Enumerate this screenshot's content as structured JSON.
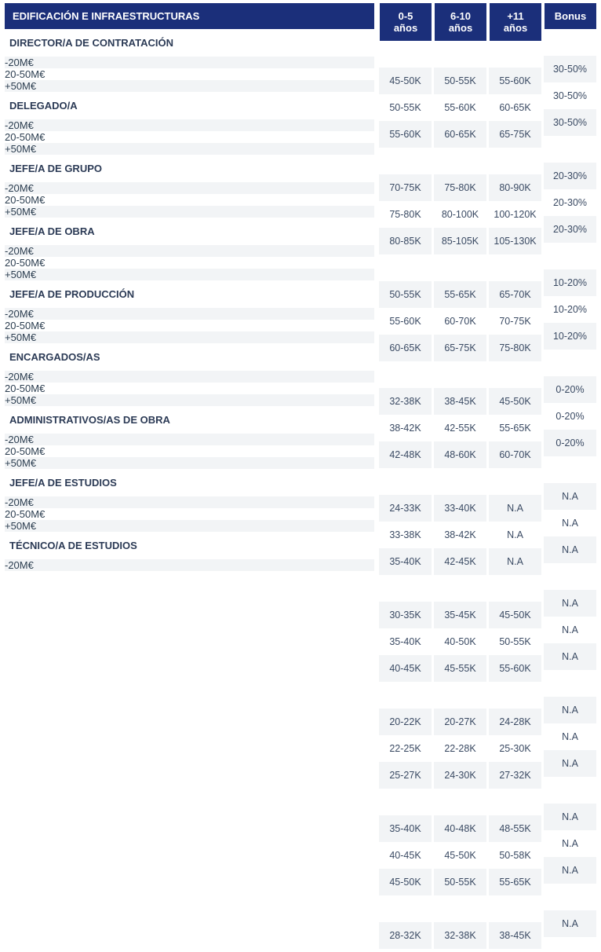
{
  "header": {
    "title": "EDIFICACIÓN E INFRAESTRUCTURAS",
    "cols": [
      "0-5 años",
      "6-10 años",
      "+11 años",
      "Bonus"
    ]
  },
  "colors": {
    "header_bg": "#1b2f7a",
    "header_fg": "#ffffff",
    "alt_row_bg": "#f2f4f6",
    "text": "#2b3a55"
  },
  "sections": [
    {
      "title": "DIRECTOR/A DE CONTRATACIÓN",
      "rows": [
        {
          "label": "-20M€",
          "vals": [
            "45-50K",
            "50-55K",
            "55-60K",
            "30-50%"
          ]
        },
        {
          "label": "20-50M€",
          "vals": [
            "50-55K",
            "55-60K",
            "60-65K",
            "30-50%"
          ]
        },
        {
          "label": "+50M€",
          "vals": [
            "55-60K",
            "60-65K",
            "65-75K",
            "30-50%"
          ]
        }
      ]
    },
    {
      "title": "DELEGADO/A",
      "rows": [
        {
          "label": "-20M€",
          "vals": [
            "70-75K",
            "75-80K",
            "80-90K",
            "20-30%"
          ]
        },
        {
          "label": "20-50M€",
          "vals": [
            "75-80K",
            "80-100K",
            "100-120K",
            "20-30%"
          ]
        },
        {
          "label": "+50M€",
          "vals": [
            "80-85K",
            "85-105K",
            "105-130K",
            "20-30%"
          ]
        }
      ]
    },
    {
      "title": "JEFE/A DE GRUPO",
      "rows": [
        {
          "label": "-20M€",
          "vals": [
            "50-55K",
            "55-65K",
            "65-70K",
            "10-20%"
          ]
        },
        {
          "label": "20-50M€",
          "vals": [
            "55-60K",
            "60-70K",
            "70-75K",
            "10-20%"
          ]
        },
        {
          "label": "+50M€",
          "vals": [
            "60-65K",
            "65-75K",
            "75-80K",
            "10-20%"
          ]
        }
      ]
    },
    {
      "title": "JEFE/A DE OBRA",
      "rows": [
        {
          "label": "-20M€",
          "vals": [
            "32-38K",
            "38-45K",
            "45-50K",
            "0-20%"
          ]
        },
        {
          "label": "20-50M€",
          "vals": [
            "38-42K",
            "42-55K",
            "55-65K",
            "0-20%"
          ]
        },
        {
          "label": "+50M€",
          "vals": [
            "42-48K",
            "48-60K",
            "60-70K",
            "0-20%"
          ]
        }
      ]
    },
    {
      "title": "JEFE/A DE PRODUCCIÓN",
      "rows": [
        {
          "label": "-20M€",
          "vals": [
            "24-33K",
            "33-40K",
            "N.A",
            "N.A"
          ]
        },
        {
          "label": "20-50M€",
          "vals": [
            "33-38K",
            "38-42K",
            "N.A",
            "N.A"
          ]
        },
        {
          "label": "+50M€",
          "vals": [
            "35-40K",
            "42-45K",
            "N.A",
            "N.A"
          ]
        }
      ]
    },
    {
      "title": "ENCARGADOS/AS",
      "rows": [
        {
          "label": "-20M€",
          "vals": [
            "30-35K",
            "35-45K",
            "45-50K",
            "N.A"
          ]
        },
        {
          "label": "20-50M€",
          "vals": [
            "35-40K",
            "40-50K",
            "50-55K",
            "N.A"
          ]
        },
        {
          "label": "+50M€",
          "vals": [
            "40-45K",
            "45-55K",
            "55-60K",
            "N.A"
          ]
        }
      ]
    },
    {
      "title": "ADMINISTRATIVOS/AS DE OBRA",
      "rows": [
        {
          "label": "-20M€",
          "vals": [
            "20-22K",
            "20-27K",
            "24-28K",
            "N.A"
          ]
        },
        {
          "label": "20-50M€",
          "vals": [
            "22-25K",
            "22-28K",
            "25-30K",
            "N.A"
          ]
        },
        {
          "label": "+50M€",
          "vals": [
            "25-27K",
            "24-30K",
            "27-32K",
            "N.A"
          ]
        }
      ]
    },
    {
      "title": "JEFE/A DE ESTUDIOS",
      "rows": [
        {
          "label": "-20M€",
          "vals": [
            "35-40K",
            "40-48K",
            "48-55K",
            "N.A"
          ]
        },
        {
          "label": "20-50M€",
          "vals": [
            "40-45K",
            "45-50K",
            "50-58K",
            "N.A"
          ]
        },
        {
          "label": "+50M€",
          "vals": [
            "45-50K",
            "50-55K",
            "55-65K",
            "N.A"
          ]
        }
      ]
    },
    {
      "title": "TÉCNICO/A DE ESTUDIOS",
      "rows": [
        {
          "label": "-20M€",
          "vals": [
            "28-32K",
            "32-38K",
            "38-45K",
            "N.A"
          ]
        }
      ]
    }
  ]
}
